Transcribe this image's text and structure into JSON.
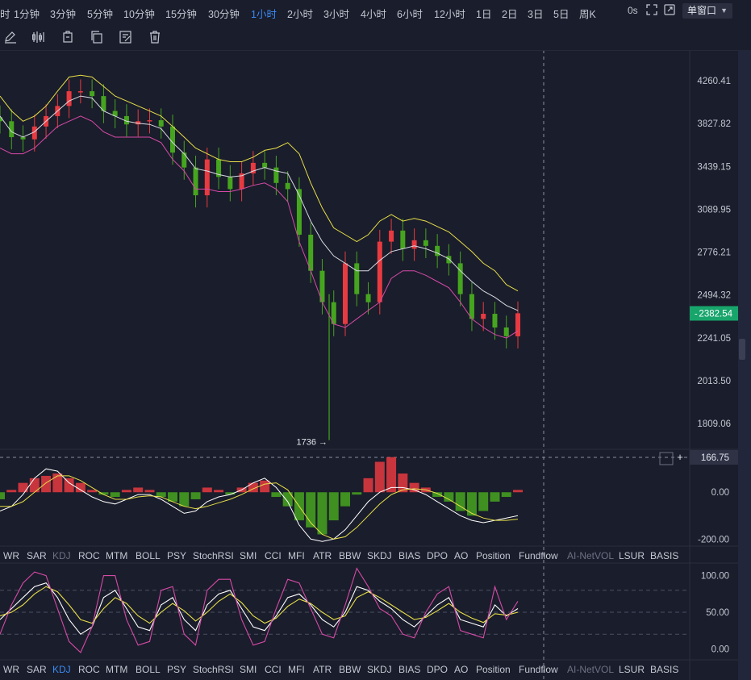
{
  "toolbar": {
    "timeframes": [
      "时",
      "1分钟",
      "3分钟",
      "5分钟",
      "10分钟",
      "15分钟",
      "30分钟",
      "1小时",
      "2小时",
      "3小时",
      "4小时",
      "6小时",
      "12小时",
      "1日",
      "2日",
      "3日",
      "5日",
      "周K"
    ],
    "active_timeframe": "1小时",
    "countdown": "0s",
    "window_mode": "单窗口"
  },
  "drawing_tools": [
    "pencil-icon",
    "candlestick-icon",
    "clipboard-icon",
    "copy-icon",
    "note-edit-icon",
    "trash-icon"
  ],
  "price_axis": {
    "labels": [
      "4260.41",
      "3827.82",
      "3439.15",
      "3089.95",
      "2776.21",
      "2494.32",
      "2241.05",
      "2013.50",
      "1809.06"
    ],
    "current_price": "2382.54",
    "crosshair_value": "166.75"
  },
  "annotations": {
    "low_marker": "1736 →"
  },
  "macd_axis": [
    "0.00",
    "-200.00"
  ],
  "kdj_axis": [
    "100.00",
    "50.00",
    "0.00"
  ],
  "indicator_tabs": {
    "labels": [
      "WR",
      "SAR",
      "KDJ",
      "ROC",
      "MTM",
      "BOLL",
      "PSY",
      "StochRSI",
      "SMI",
      "CCI",
      "MFI",
      "ATR",
      "BBW",
      "SKDJ",
      "BIAS",
      "DPO",
      "AO",
      "Position",
      "Fundflow",
      "AI-NetVOL",
      "LSUR",
      "BASIS"
    ],
    "dim": [
      "AI-NetVOL"
    ]
  },
  "upper_tab_state": {
    "faded": "KDJ"
  },
  "lower_tab_state": {
    "active": "KDJ"
  },
  "colors": {
    "up": "#e83a41",
    "down": "#46a51f",
    "boll_upper": "#e7df48",
    "boll_mid": "#d8dae2",
    "boll_lower": "#d64aa7",
    "price_tag": "#18a56c",
    "active_tab": "#3a8bf5"
  },
  "chart_data": [
    {
      "type": "candlestick",
      "indicator": "BOLL",
      "description_source": "main price panel",
      "y_scale": "log",
      "ylim": [
        1700,
        4600
      ],
      "last_price": 2382.54,
      "low_marker": 1736,
      "series": [
        {
          "name": "close",
          "values": [
            3850,
            3700,
            3680,
            3800,
            3900,
            4000,
            4150,
            4150,
            4100,
            3950,
            3900,
            3820,
            3850,
            3860,
            3800,
            3560,
            3430,
            3200,
            3500,
            3350,
            3250,
            3380,
            3470,
            3430,
            3300,
            3250,
            2900,
            2650,
            2450,
            2320,
            2700,
            2500,
            2450,
            2850,
            2930,
            2800,
            2860,
            2820,
            2750,
            2700,
            2500,
            2350,
            2380,
            2300,
            2250,
            2383
          ]
        },
        {
          "name": "boll_upper",
          "values": [
            4100,
            3950,
            3850,
            3900,
            4000,
            4150,
            4300,
            4320,
            4300,
            4200,
            4100,
            4050,
            4000,
            3950,
            3900,
            3800,
            3700,
            3600,
            3550,
            3500,
            3480,
            3480,
            3520,
            3580,
            3600,
            3650,
            3550,
            3300,
            3100,
            2950,
            2900,
            2850,
            2900,
            3000,
            3050,
            3000,
            3020,
            3000,
            2960,
            2920,
            2850,
            2780,
            2700,
            2650,
            2560,
            2520
          ]
        },
        {
          "name": "boll_mid",
          "values": [
            3900,
            3750,
            3700,
            3750,
            3850,
            3950,
            4050,
            4100,
            4080,
            3950,
            3900,
            3850,
            3830,
            3820,
            3780,
            3650,
            3550,
            3420,
            3400,
            3370,
            3350,
            3360,
            3400,
            3430,
            3400,
            3380,
            3200,
            3000,
            2850,
            2750,
            2700,
            2650,
            2650,
            2720,
            2780,
            2800,
            2820,
            2800,
            2770,
            2730,
            2650,
            2580,
            2520,
            2480,
            2430,
            2400
          ]
        },
        {
          "name": "boll_lower",
          "values": [
            3600,
            3550,
            3550,
            3600,
            3700,
            3800,
            3850,
            3900,
            3850,
            3750,
            3700,
            3700,
            3700,
            3700,
            3650,
            3500,
            3400,
            3250,
            3250,
            3230,
            3230,
            3250,
            3280,
            3300,
            3250,
            3150,
            2850,
            2650,
            2450,
            2320,
            2300,
            2350,
            2400,
            2450,
            2600,
            2650,
            2650,
            2620,
            2580,
            2540,
            2450,
            2350,
            2300,
            2260,
            2240,
            2280
          ]
        }
      ]
    },
    {
      "type": "histogram",
      "indicator": "MACD",
      "ylim": [
        -230,
        180
      ],
      "values": [
        -30,
        10,
        40,
        60,
        70,
        80,
        60,
        40,
        10,
        -10,
        -20,
        10,
        20,
        10,
        -20,
        -40,
        -60,
        -30,
        20,
        10,
        -10,
        20,
        40,
        50,
        -20,
        -60,
        -120,
        -150,
        -180,
        -120,
        -60,
        -10,
        60,
        130,
        150,
        80,
        40,
        20,
        -20,
        -40,
        -80,
        -100,
        -80,
        -40,
        -20,
        10
      ],
      "series": [
        {
          "name": "dif",
          "values": [
            -80,
            -60,
            -10,
            60,
            100,
            90,
            40,
            10,
            -20,
            -40,
            -50,
            -30,
            -10,
            -10,
            -30,
            -60,
            -90,
            -80,
            -40,
            -20,
            -10,
            10,
            40,
            60,
            20,
            -40,
            -140,
            -200,
            -210,
            -200,
            -160,
            -100,
            -40,
            0,
            20,
            20,
            10,
            -10,
            -40,
            -70,
            -100,
            -120,
            -130,
            -120,
            -110,
            -100
          ]
        },
        {
          "name": "dea",
          "values": [
            -60,
            -60,
            -40,
            0,
            40,
            70,
            70,
            50,
            20,
            -10,
            -30,
            -30,
            -20,
            -15,
            -20,
            -40,
            -60,
            -70,
            -60,
            -45,
            -30,
            -10,
            15,
            35,
            40,
            10,
            -60,
            -130,
            -180,
            -200,
            -190,
            -150,
            -100,
            -50,
            -10,
            10,
            15,
            10,
            -5,
            -30,
            -60,
            -90,
            -110,
            -120,
            -120,
            -115
          ]
        }
      ]
    },
    {
      "type": "line",
      "indicator": "KDJ",
      "ylim": [
        -15,
        115
      ],
      "reference_lines": [
        80,
        50,
        20
      ],
      "series": [
        {
          "name": "K",
          "values": [
            40,
            55,
            70,
            85,
            90,
            70,
            40,
            20,
            30,
            70,
            80,
            55,
            30,
            25,
            60,
            70,
            40,
            25,
            60,
            75,
            80,
            55,
            30,
            25,
            45,
            70,
            75,
            60,
            40,
            30,
            50,
            85,
            80,
            65,
            55,
            40,
            30,
            45,
            60,
            70,
            40,
            35,
            30,
            60,
            45,
            55
          ]
        },
        {
          "name": "D",
          "values": [
            45,
            50,
            60,
            75,
            85,
            78,
            60,
            40,
            35,
            55,
            70,
            62,
            45,
            35,
            50,
            62,
            52,
            38,
            50,
            65,
            75,
            63,
            45,
            35,
            42,
            58,
            68,
            62,
            50,
            40,
            45,
            70,
            78,
            70,
            60,
            50,
            40,
            43,
            52,
            62,
            50,
            42,
            36,
            48,
            46,
            50
          ]
        },
        {
          "name": "J",
          "values": [
            20,
            60,
            90,
            105,
            100,
            55,
            10,
            -5,
            30,
            100,
            100,
            40,
            5,
            10,
            80,
            85,
            20,
            5,
            80,
            95,
            95,
            40,
            5,
            10,
            55,
            95,
            90,
            55,
            20,
            15,
            60,
            110,
            85,
            55,
            45,
            20,
            15,
            50,
            75,
            85,
            25,
            20,
            15,
            85,
            40,
            65
          ]
        }
      ]
    }
  ]
}
